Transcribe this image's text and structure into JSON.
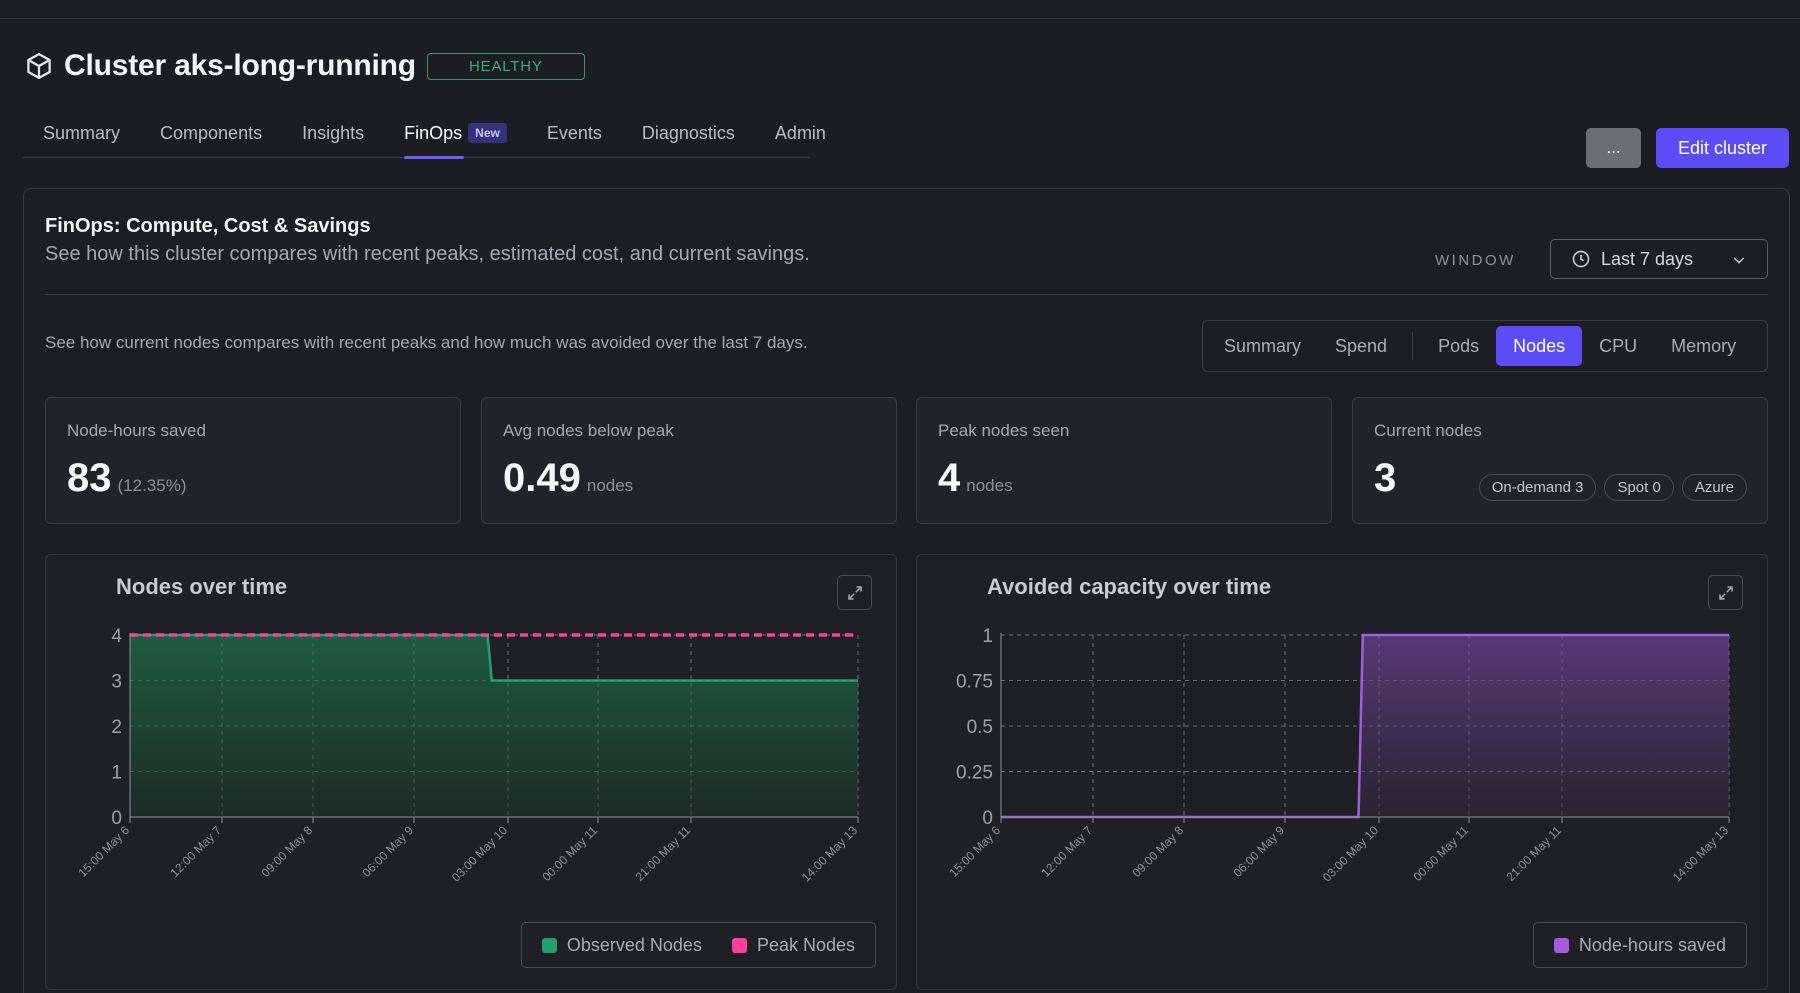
{
  "header": {
    "title": "Cluster aks-long-running",
    "status": "HEALTHY"
  },
  "tabs": [
    {
      "label": "Summary"
    },
    {
      "label": "Components"
    },
    {
      "label": "Insights"
    },
    {
      "label": "FinOps",
      "badge": "New",
      "active": true
    },
    {
      "label": "Events"
    },
    {
      "label": "Diagnostics"
    },
    {
      "label": "Admin"
    }
  ],
  "actions": {
    "more_label": "...",
    "edit_label": "Edit cluster"
  },
  "panel": {
    "title": "FinOps: Compute, Cost & Savings",
    "subtitle": "See how this cluster compares with recent peaks, estimated cost, and current savings.",
    "window_label": "WINDOW",
    "window_value": "Last 7 days",
    "section_description": "See how current nodes compares with recent peaks and how much was avoided over the last 7 days."
  },
  "segments": [
    "Summary",
    "Spend",
    "Pods",
    "Nodes",
    "CPU",
    "Memory"
  ],
  "segments_active": "Nodes",
  "kpis": [
    {
      "label": "Node-hours saved",
      "value": "83",
      "unit": "(12.35%)"
    },
    {
      "label": "Avg nodes below peak",
      "value": "0.49",
      "unit": "nodes"
    },
    {
      "label": "Peak nodes seen",
      "value": "4",
      "unit": "nodes"
    },
    {
      "label": "Current nodes",
      "value": "3",
      "chips": [
        "On-demand 3",
        "Spot 0",
        "Azure"
      ]
    }
  ],
  "colors": {
    "accent": "#5b4cf5",
    "healthy": "#2fb37a",
    "observed": "#22a06b",
    "peak": "#ff3d9a",
    "saved": "#a25ddc"
  },
  "chart_data": [
    {
      "type": "area",
      "title": "Nodes over time",
      "x_ticks": [
        "15:00 May 6",
        "12:00 May 7",
        "09:00 May 8",
        "06:00 May 9",
        "03:00 May 10",
        "00:00 May 11",
        "21:00 May 11",
        "14:00 May 13"
      ],
      "y_ticks": [
        "0",
        "1",
        "2",
        "3",
        "4"
      ],
      "ylim": [
        0,
        4
      ],
      "xlim": [
        "2024-05-06T15:00",
        "2024-05-13T14:00"
      ],
      "series": [
        {
          "name": "Observed Nodes",
          "points": [
            [
              "2024-05-06T15:00",
              4
            ],
            [
              "2024-05-10T01:00",
              4
            ],
            [
              "2024-05-10T02:00",
              3
            ],
            [
              "2024-05-13T14:00",
              3
            ]
          ]
        },
        {
          "name": "Peak Nodes",
          "points": [
            [
              "2024-05-06T15:00",
              4
            ],
            [
              "2024-05-13T14:00",
              4
            ]
          ]
        }
      ],
      "grid": true,
      "legend": "bottom-right"
    },
    {
      "type": "area",
      "title": "Avoided capacity over time",
      "x_ticks": [
        "15:00 May 6",
        "12:00 May 7",
        "09:00 May 8",
        "06:00 May 9",
        "03:00 May 10",
        "00:00 May 11",
        "21:00 May 11",
        "14:00 May 13"
      ],
      "y_ticks": [
        "0",
        "0.25",
        "0.5",
        "0.75",
        "1"
      ],
      "ylim": [
        0,
        1
      ],
      "xlim": [
        "2024-05-06T15:00",
        "2024-05-13T14:00"
      ],
      "series": [
        {
          "name": "Node-hours saved",
          "points": [
            [
              "2024-05-06T15:00",
              0
            ],
            [
              "2024-05-10T01:00",
              0
            ],
            [
              "2024-05-10T02:00",
              1
            ],
            [
              "2024-05-13T14:00",
              1
            ]
          ]
        }
      ],
      "grid": true,
      "legend": "bottom-right"
    }
  ]
}
